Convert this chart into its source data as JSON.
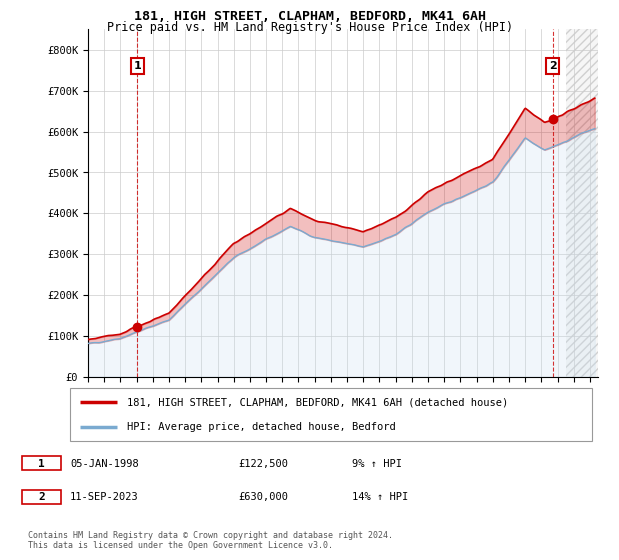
{
  "title": "181, HIGH STREET, CLAPHAM, BEDFORD, MK41 6AH",
  "subtitle": "Price paid vs. HM Land Registry's House Price Index (HPI)",
  "property_label": "181, HIGH STREET, CLAPHAM, BEDFORD, MK41 6AH (detached house)",
  "hpi_label": "HPI: Average price, detached house, Bedford",
  "footnote": "Contains HM Land Registry data © Crown copyright and database right 2024.\nThis data is licensed under the Open Government Licence v3.0.",
  "annotation1": {
    "num": "1",
    "date": "05-JAN-1998",
    "price": "£122,500",
    "change": "9% ↑ HPI"
  },
  "annotation2": {
    "num": "2",
    "date": "11-SEP-2023",
    "price": "£630,000",
    "change": "14% ↑ HPI"
  },
  "sale1_year": 1998.04,
  "sale1_price": 122500,
  "sale2_year": 2023.7,
  "sale2_price": 630000,
  "property_color": "#cc0000",
  "hpi_color": "#7aaad0",
  "hpi_fill_color": "#c8dff0",
  "background_color": "#ffffff",
  "grid_color": "#cccccc",
  "ylim": [
    0,
    850000
  ],
  "xlim_start": 1995.0,
  "xlim_end": 2026.5,
  "hatch_start": 2024.5,
  "yticks": [
    0,
    100000,
    200000,
    300000,
    400000,
    500000,
    600000,
    700000,
    800000
  ],
  "ytick_labels": [
    "£0",
    "£100K",
    "£200K",
    "£300K",
    "£400K",
    "£500K",
    "£600K",
    "£700K",
    "£800K"
  ],
  "xticks": [
    1995,
    1996,
    1997,
    1998,
    1999,
    2000,
    2001,
    2002,
    2003,
    2004,
    2005,
    2006,
    2007,
    2008,
    2009,
    2010,
    2011,
    2012,
    2013,
    2014,
    2015,
    2016,
    2017,
    2018,
    2019,
    2020,
    2021,
    2022,
    2023,
    2024,
    2025,
    2026
  ]
}
